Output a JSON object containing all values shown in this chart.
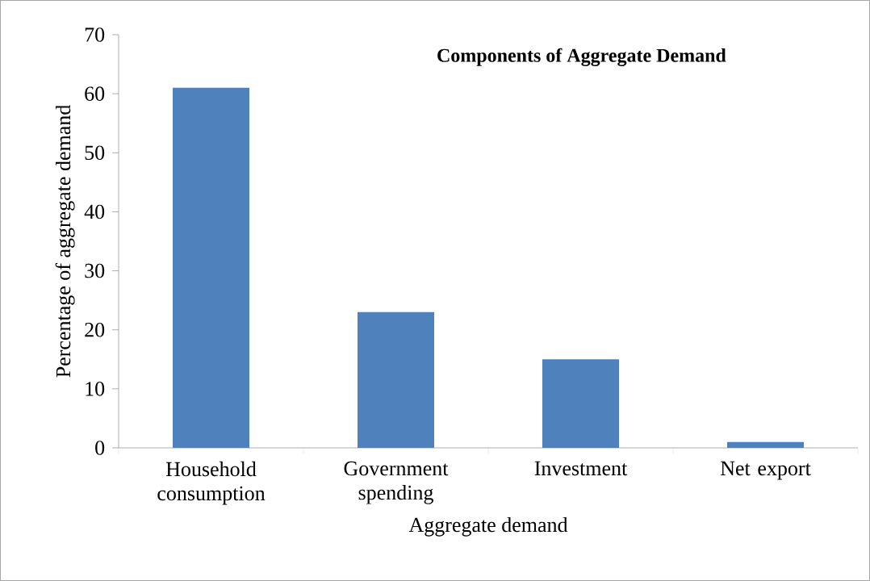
{
  "chart_data": {
    "type": "bar",
    "title": "Components of Aggregate Demand",
    "xlabel": "Aggregate demand",
    "ylabel": "Percentage of aggregate demand",
    "categories": [
      "Household consumption",
      "Government spending",
      "Investment",
      "Net export"
    ],
    "values": [
      61,
      23,
      15,
      1
    ],
    "color": "#4f81bd",
    "ylim": [
      0,
      70
    ],
    "yticks": [
      0,
      10,
      20,
      30,
      40,
      50,
      60,
      70
    ]
  }
}
